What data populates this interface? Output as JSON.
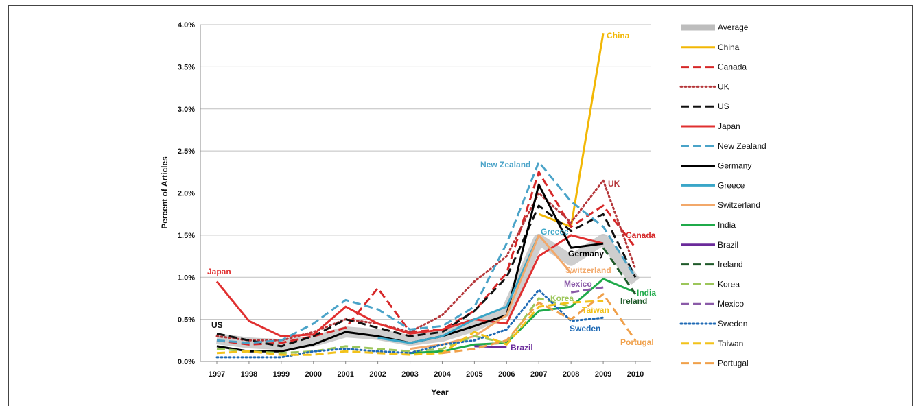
{
  "chart_data": {
    "type": "line",
    "title": "",
    "xlabel": "Year",
    "ylabel": "Percent of Articles",
    "ylim": [
      0,
      4.0
    ],
    "yticks": [
      "0.0%",
      "0.5%",
      "1.0%",
      "1.5%",
      "2.0%",
      "2.5%",
      "3.0%",
      "3.5%",
      "4.0%"
    ],
    "ytick_values": [
      0,
      0.5,
      1.0,
      1.5,
      2.0,
      2.5,
      3.0,
      3.5,
      4.0
    ],
    "x": [
      "1997",
      "1998",
      "1999",
      "2000",
      "2001",
      "2002",
      "2003",
      "2004",
      "2005",
      "2006",
      "2007",
      "2008",
      "2009",
      "2010"
    ],
    "grid": true,
    "legend_position": "right",
    "series": [
      {
        "name": "Average",
        "color": "#bdbdbd",
        "style": "band",
        "values": [
          0.27,
          0.22,
          0.2,
          0.24,
          0.35,
          0.32,
          0.25,
          0.3,
          0.42,
          0.6,
          1.45,
          1.2,
          1.45,
          0.95
        ]
      },
      {
        "name": "China",
        "color": "#f2b705",
        "style": "solid",
        "values": [
          null,
          null,
          null,
          null,
          null,
          null,
          null,
          null,
          null,
          null,
          1.75,
          1.6,
          3.9,
          null
        ]
      },
      {
        "name": "Canada",
        "color": "#d62728",
        "style": "dashed",
        "values": [
          0.25,
          0.2,
          0.22,
          0.3,
          0.4,
          0.87,
          0.35,
          0.38,
          0.6,
          1.05,
          2.25,
          1.6,
          1.85,
          1.35
        ]
      },
      {
        "name": "UK",
        "color": "#b5373a",
        "style": "dotted",
        "values": [
          0.3,
          0.25,
          0.25,
          0.35,
          0.5,
          0.45,
          0.35,
          0.55,
          0.95,
          1.25,
          2.0,
          1.65,
          2.15,
          1.1
        ]
      },
      {
        "name": "US",
        "color": "#111111",
        "style": "dashed",
        "values": [
          0.33,
          0.25,
          0.18,
          0.3,
          0.5,
          0.4,
          0.3,
          0.35,
          0.6,
          1.0,
          1.85,
          1.55,
          1.75,
          1.0
        ]
      },
      {
        "name": "Japan",
        "color": "#e03030",
        "style": "solid",
        "values": [
          0.95,
          0.48,
          0.3,
          0.32,
          0.65,
          0.45,
          0.33,
          0.38,
          0.5,
          0.45,
          1.25,
          1.5,
          1.4,
          null
        ]
      },
      {
        "name": "New Zealand",
        "color": "#4aa3c8",
        "style": "dashed",
        "values": [
          0.25,
          0.22,
          0.25,
          0.45,
          0.73,
          0.62,
          0.38,
          0.42,
          0.65,
          1.4,
          2.37,
          1.9,
          1.6,
          1.0
        ]
      },
      {
        "name": "Germany",
        "color": "#000000",
        "style": "solid",
        "values": [
          0.18,
          0.12,
          0.12,
          0.2,
          0.35,
          0.3,
          0.22,
          0.3,
          0.42,
          0.55,
          2.1,
          1.35,
          1.4,
          null
        ]
      },
      {
        "name": "Greece",
        "color": "#3aa6c8",
        "style": "solid",
        "values": [
          null,
          null,
          null,
          null,
          null,
          0.28,
          0.22,
          0.3,
          0.5,
          0.65,
          1.5,
          null,
          null,
          null
        ]
      },
      {
        "name": "Switzerland",
        "color": "#f2a86a",
        "style": "solid",
        "values": [
          null,
          null,
          null,
          null,
          null,
          null,
          0.15,
          0.2,
          0.3,
          0.55,
          1.5,
          1.05,
          null,
          null
        ]
      },
      {
        "name": "India",
        "color": "#1faa4a",
        "style": "solid",
        "values": [
          null,
          null,
          null,
          null,
          null,
          null,
          0.1,
          0.12,
          0.2,
          0.22,
          0.6,
          0.65,
          0.98,
          0.82
        ]
      },
      {
        "name": "Brazil",
        "color": "#6a2a9a",
        "style": "solid",
        "values": [
          null,
          null,
          null,
          null,
          null,
          null,
          null,
          null,
          0.18,
          0.17,
          null,
          null,
          null,
          null
        ]
      },
      {
        "name": "Ireland",
        "color": "#1f5a2a",
        "style": "dashed",
        "values": [
          null,
          null,
          null,
          null,
          null,
          null,
          null,
          null,
          null,
          null,
          null,
          null,
          1.35,
          0.8
        ]
      },
      {
        "name": "Korea",
        "color": "#9cc65a",
        "style": "dashed",
        "values": [
          0.15,
          0.12,
          0.1,
          0.12,
          0.18,
          0.15,
          0.12,
          0.15,
          0.3,
          0.22,
          0.75,
          0.65,
          null,
          null
        ]
      },
      {
        "name": "Mexico",
        "color": "#8a5aa8",
        "style": "dashed",
        "values": [
          null,
          null,
          null,
          null,
          null,
          null,
          null,
          null,
          null,
          null,
          null,
          0.82,
          0.88,
          null
        ]
      },
      {
        "name": "Sweden",
        "color": "#1f6ab5",
        "style": "dotted",
        "values": [
          0.05,
          0.05,
          0.05,
          0.12,
          0.15,
          0.12,
          0.1,
          0.2,
          0.25,
          0.38,
          0.85,
          0.48,
          0.52,
          null
        ]
      },
      {
        "name": "Taiwan",
        "color": "#f2c21a",
        "style": "dashed",
        "values": [
          0.1,
          0.12,
          0.08,
          0.08,
          0.12,
          0.1,
          0.08,
          0.1,
          0.35,
          0.2,
          0.65,
          0.7,
          0.72,
          null
        ]
      },
      {
        "name": "Portugal",
        "color": "#f0a04a",
        "style": "dashed",
        "values": [
          null,
          null,
          null,
          null,
          null,
          null,
          null,
          0.1,
          0.15,
          0.25,
          0.7,
          0.5,
          0.8,
          0.25
        ]
      }
    ],
    "annotations": [
      {
        "text": "Japan",
        "color": "#e03030"
      },
      {
        "text": "US",
        "color": "#111111"
      },
      {
        "text": "China",
        "color": "#f2b705"
      },
      {
        "text": "New Zealand",
        "color": "#4aa3c8"
      },
      {
        "text": "UK",
        "color": "#b5373a"
      },
      {
        "text": "Canada",
        "color": "#d62728"
      },
      {
        "text": "Greece",
        "color": "#3aa6c8"
      },
      {
        "text": "Germany",
        "color": "#000000"
      },
      {
        "text": "Switzerland",
        "color": "#f2a86a"
      },
      {
        "text": "Mexico",
        "color": "#8a5aa8"
      },
      {
        "text": "Korea",
        "color": "#9cc65a"
      },
      {
        "text": "India",
        "color": "#1faa4a"
      },
      {
        "text": "Ireland",
        "color": "#1f5a2a"
      },
      {
        "text": "Taiwan",
        "color": "#f2c21a"
      },
      {
        "text": "Sweden",
        "color": "#1f6ab5"
      },
      {
        "text": "Brazil",
        "color": "#6a2a9a"
      },
      {
        "text": "Portugal",
        "color": "#f0a04a"
      }
    ]
  }
}
